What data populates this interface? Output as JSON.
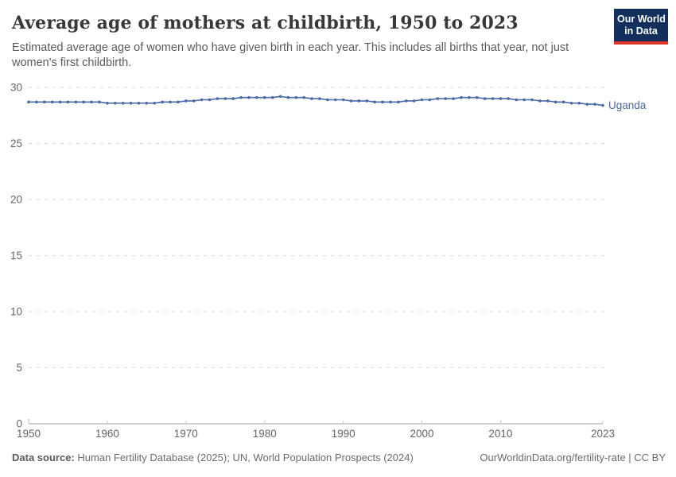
{
  "header": {
    "title": "Average age of mothers at childbirth, 1950 to 2023",
    "subtitle": "Estimated average age of women who have given birth in each year. This includes all births that year, not just women's first childbirth."
  },
  "logo": {
    "line1": "Our World",
    "line2": "in Data"
  },
  "chart_data": {
    "type": "line",
    "title": "Average age of mothers at childbirth, 1950 to 2023",
    "xlabel": "",
    "ylabel": "",
    "x_ticks": [
      1950,
      1960,
      1970,
      1980,
      1990,
      2000,
      2010,
      2023
    ],
    "y_ticks": [
      0,
      5,
      10,
      15,
      20,
      25,
      30
    ],
    "xlim": [
      1950,
      2023
    ],
    "ylim": [
      0,
      30
    ],
    "grid": "dashed-horizontal",
    "legend_position": "line-end-label",
    "series": [
      {
        "name": "Uganda",
        "color": "#4a69a8",
        "x": [
          1950,
          1951,
          1952,
          1953,
          1954,
          1955,
          1956,
          1957,
          1958,
          1959,
          1960,
          1961,
          1962,
          1963,
          1964,
          1965,
          1966,
          1967,
          1968,
          1969,
          1970,
          1971,
          1972,
          1973,
          1974,
          1975,
          1976,
          1977,
          1978,
          1979,
          1980,
          1981,
          1982,
          1983,
          1984,
          1985,
          1986,
          1987,
          1988,
          1989,
          1990,
          1991,
          1992,
          1993,
          1994,
          1995,
          1996,
          1997,
          1998,
          1999,
          2000,
          2001,
          2002,
          2003,
          2004,
          2005,
          2006,
          2007,
          2008,
          2009,
          2010,
          2011,
          2012,
          2013,
          2014,
          2015,
          2016,
          2017,
          2018,
          2019,
          2020,
          2021,
          2022,
          2023
        ],
        "values": [
          28.7,
          28.7,
          28.7,
          28.7,
          28.7,
          28.7,
          28.7,
          28.7,
          28.7,
          28.7,
          28.6,
          28.6,
          28.6,
          28.6,
          28.6,
          28.6,
          28.6,
          28.7,
          28.7,
          28.7,
          28.8,
          28.8,
          28.9,
          28.9,
          29.0,
          29.0,
          29.0,
          29.1,
          29.1,
          29.1,
          29.1,
          29.1,
          29.2,
          29.1,
          29.1,
          29.1,
          29.0,
          29.0,
          28.9,
          28.9,
          28.9,
          28.8,
          28.8,
          28.8,
          28.7,
          28.7,
          28.7,
          28.7,
          28.8,
          28.8,
          28.9,
          28.9,
          29.0,
          29.0,
          29.0,
          29.1,
          29.1,
          29.1,
          29.0,
          29.0,
          29.0,
          29.0,
          28.9,
          28.9,
          28.9,
          28.8,
          28.8,
          28.7,
          28.7,
          28.6,
          28.6,
          28.5,
          28.5,
          28.4
        ]
      }
    ],
    "colors": {
      "line": "#4a69a8",
      "entity_label": "#4c6a9c",
      "gridline": "#dadada",
      "axis": "#a1a1a1",
      "tick_label": "#666666"
    }
  },
  "footer": {
    "source_label": "Data source:",
    "source_text": " Human Fertility Database (2025); UN, World Population Prospects (2024)",
    "link": "OurWorldinData.org/fertility-rate | CC BY"
  }
}
